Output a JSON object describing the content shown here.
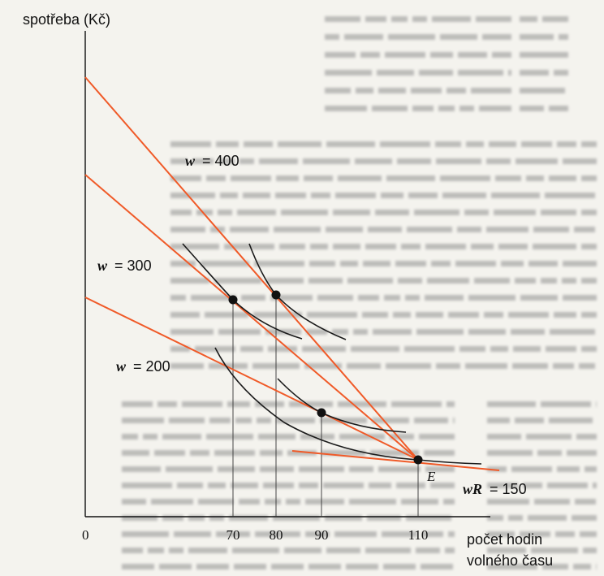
{
  "axes": {
    "y_label": "spotřeba (Kč)",
    "x_label_line1": "počet hodin",
    "x_label_line2": "volného času",
    "origin": "0"
  },
  "budget_lines": [
    {
      "wage_symbol": "w",
      "wage_value": "= 400"
    },
    {
      "wage_symbol": "w",
      "wage_value": "= 300"
    },
    {
      "wage_symbol": "w",
      "wage_value": "= 200"
    }
  ],
  "reservation": {
    "symbol": "wR",
    "value": "= 150"
  },
  "endowment_point": "E",
  "x_ticks": [
    "70",
    "80",
    "90",
    "110"
  ],
  "colors": {
    "budget_line": "#f05a28",
    "curve": "#1a1a1a",
    "axis": "#111111"
  }
}
